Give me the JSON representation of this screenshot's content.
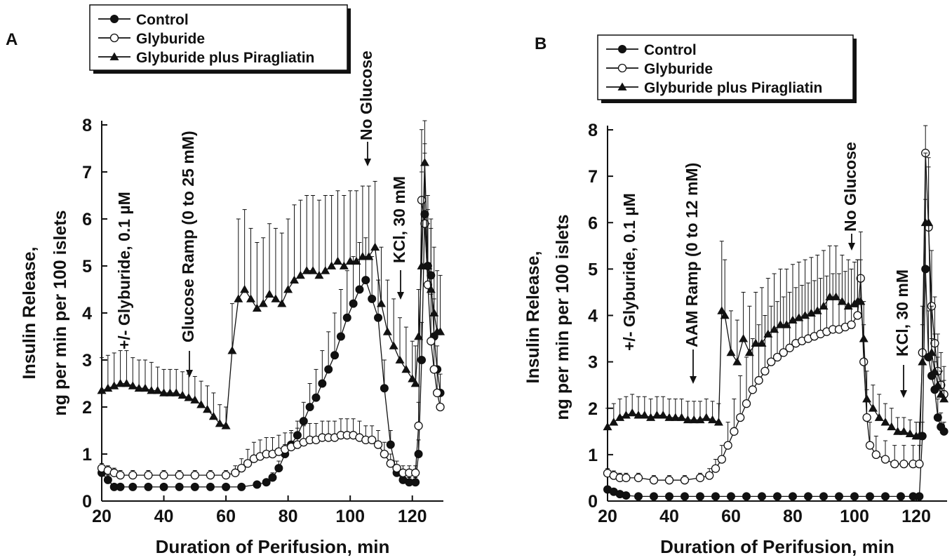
{
  "chart_data": [
    {
      "type": "line",
      "panel_label": "A",
      "xlabel": "Duration of Perifusion, min",
      "ylabel_line1": "Insulin Release,",
      "ylabel_line2": "ng per min per 100 islets",
      "xlim": [
        20,
        130
      ],
      "ylim": [
        0,
        8
      ],
      "xticks": [
        "20",
        "40",
        "60",
        "80",
        "100",
        "120"
      ],
      "yticks": [
        "0",
        "1",
        "2",
        "3",
        "4",
        "5",
        "6",
        "7",
        "8"
      ],
      "legend": [
        "Control",
        "Glyburide",
        "Glyburide plus Piragliatin"
      ],
      "legend_position": "top",
      "annotations": {
        "glyburide": "+/- Glyburide, 0.1 µM",
        "ramp": "Glucose Ramp (0 to 25 mM)",
        "no_glucose": "No Glucose",
        "kcl": "KCl, 30 mM"
      },
      "series": [
        {
          "name": "Control",
          "marker": "filled-circle",
          "x": [
            20,
            22,
            24,
            26,
            30,
            35,
            40,
            45,
            50,
            55,
            60,
            65,
            70,
            73,
            75,
            77,
            79,
            81,
            83,
            85,
            87,
            89,
            91,
            93,
            95,
            97,
            99,
            101,
            103,
            105,
            107,
            109,
            111,
            113,
            115,
            117,
            119,
            121,
            122,
            123,
            124,
            125,
            126,
            127,
            128,
            129
          ],
          "y": [
            0.6,
            0.45,
            0.3,
            0.3,
            0.3,
            0.3,
            0.3,
            0.3,
            0.3,
            0.3,
            0.3,
            0.3,
            0.35,
            0.4,
            0.5,
            0.7,
            1.0,
            1.2,
            1.4,
            1.7,
            2.0,
            2.2,
            2.5,
            2.8,
            3.1,
            3.5,
            3.9,
            4.2,
            4.5,
            4.7,
            4.3,
            3.9,
            2.4,
            1.2,
            0.6,
            0.45,
            0.4,
            0.4,
            1.0,
            3.0,
            6.1,
            5.0,
            4.8,
            3.5,
            2.8,
            2.3
          ],
          "err": [
            0.1,
            0.1,
            0.05,
            0.05,
            0.05,
            0.05,
            0.05,
            0.05,
            0.05,
            0.05,
            0.05,
            0.05,
            0.05,
            0.05,
            0.1,
            0.15,
            0.2,
            0.25,
            0.3,
            0.4,
            0.5,
            0.6,
            0.7,
            0.8,
            0.9,
            1.0,
            1.0,
            1.0,
            1.0,
            0.9,
            0.9,
            0.8,
            0.6,
            0.3,
            0.1,
            0.1,
            0.1,
            0.1,
            0.3,
            0.8,
            1.5,
            1.2,
            1.0,
            0.8,
            0.5,
            0.4
          ]
        },
        {
          "name": "Glyburide",
          "marker": "open-circle",
          "x": [
            20,
            22,
            24,
            26,
            30,
            35,
            40,
            45,
            50,
            55,
            60,
            63,
            65,
            67,
            69,
            71,
            73,
            75,
            77,
            79,
            81,
            83,
            85,
            87,
            89,
            91,
            93,
            95,
            97,
            99,
            101,
            103,
            105,
            107,
            109,
            111,
            113,
            115,
            117,
            119,
            121,
            122,
            123,
            124,
            125,
            126,
            127,
            128,
            129
          ],
          "y": [
            0.7,
            0.65,
            0.6,
            0.55,
            0.55,
            0.55,
            0.55,
            0.55,
            0.55,
            0.55,
            0.55,
            0.6,
            0.7,
            0.8,
            0.9,
            0.95,
            1.0,
            1.0,
            1.05,
            1.1,
            1.15,
            1.2,
            1.25,
            1.3,
            1.3,
            1.35,
            1.35,
            1.35,
            1.4,
            1.4,
            1.4,
            1.35,
            1.3,
            1.3,
            1.2,
            1.0,
            0.8,
            0.7,
            0.6,
            0.6,
            0.6,
            1.6,
            6.4,
            5.9,
            4.6,
            3.4,
            2.8,
            2.3,
            2.0
          ],
          "err": [
            0.1,
            0.1,
            0.1,
            0.1,
            0.1,
            0.1,
            0.1,
            0.1,
            0.1,
            0.1,
            0.1,
            0.15,
            0.2,
            0.3,
            0.35,
            0.35,
            0.35,
            0.35,
            0.35,
            0.35,
            0.35,
            0.35,
            0.35,
            0.35,
            0.35,
            0.35,
            0.35,
            0.35,
            0.35,
            0.35,
            0.35,
            0.35,
            0.3,
            0.3,
            0.3,
            0.25,
            0.2,
            0.15,
            0.15,
            0.15,
            0.15,
            0.5,
            1.5,
            1.5,
            1.3,
            1.0,
            0.7,
            0.5,
            0.3
          ]
        },
        {
          "name": "Glyburide plus Piragliatin",
          "marker": "filled-triangle",
          "x": [
            20,
            22,
            24,
            26,
            28,
            30,
            32,
            34,
            36,
            38,
            40,
            42,
            44,
            46,
            48,
            50,
            52,
            54,
            56,
            58,
            60,
            62,
            64,
            66,
            68,
            70,
            72,
            74,
            76,
            78,
            80,
            82,
            84,
            86,
            88,
            90,
            92,
            94,
            96,
            98,
            100,
            102,
            104,
            106,
            108,
            110,
            112,
            114,
            116,
            118,
            120,
            121,
            122,
            123,
            124,
            125,
            126,
            127,
            128,
            129
          ],
          "y": [
            2.35,
            2.4,
            2.45,
            2.5,
            2.5,
            2.45,
            2.4,
            2.4,
            2.35,
            2.35,
            2.3,
            2.3,
            2.3,
            2.25,
            2.2,
            2.15,
            2.05,
            1.95,
            1.8,
            1.65,
            1.6,
            3.2,
            4.3,
            4.5,
            4.3,
            4.1,
            4.2,
            4.4,
            4.3,
            4.2,
            4.5,
            4.7,
            4.8,
            4.9,
            4.9,
            4.8,
            4.9,
            5.0,
            5.1,
            5.0,
            5.1,
            5.1,
            5.2,
            5.2,
            5.4,
            4.2,
            3.6,
            3.3,
            3.0,
            2.8,
            2.6,
            2.5,
            3.5,
            5.0,
            7.2,
            5.0,
            4.5,
            4.0,
            3.6,
            3.6
          ],
          "err": [
            0.7,
            0.7,
            0.7,
            0.7,
            0.7,
            0.6,
            0.6,
            0.6,
            0.6,
            0.5,
            0.5,
            0.5,
            0.5,
            0.5,
            0.5,
            0.5,
            0.5,
            0.5,
            0.5,
            0.4,
            0.4,
            1.0,
            1.7,
            1.7,
            1.5,
            1.4,
            1.4,
            1.5,
            1.5,
            1.5,
            1.5,
            1.6,
            1.6,
            1.6,
            1.6,
            1.6,
            1.6,
            1.5,
            1.5,
            1.5,
            1.5,
            1.5,
            1.5,
            1.5,
            1.4,
            1.2,
            1.1,
            1.0,
            0.9,
            0.9,
            0.8,
            0.8,
            1.0,
            2.0,
            1.2,
            1.5,
            1.5,
            1.4,
            1.3,
            1.2
          ]
        }
      ]
    },
    {
      "type": "line",
      "panel_label": "B",
      "xlabel": "Duration of Perifusion, min",
      "ylabel_line1": "Insulin Release,",
      "ylabel_line2": "ng per min per 100 islets",
      "xlim": [
        20,
        130
      ],
      "ylim": [
        0,
        8
      ],
      "xticks": [
        "20",
        "40",
        "60",
        "80",
        "100",
        "120"
      ],
      "yticks": [
        "0",
        "1",
        "2",
        "3",
        "4",
        "5",
        "6",
        "7",
        "8"
      ],
      "legend": [
        "Control",
        "Glyburide",
        "Glyburide plus Piragliatin"
      ],
      "legend_position": "top",
      "annotations": {
        "glyburide": "+/- Glyburide, 0.1 µM",
        "ramp": "AAM Ramp (0 to 12 mM)",
        "no_glucose": "No Glucose",
        "kcl": "KCl, 30 mM"
      },
      "series": [
        {
          "name": "Control",
          "marker": "filled-circle",
          "x": [
            20,
            22,
            24,
            26,
            30,
            35,
            40,
            45,
            50,
            55,
            60,
            65,
            70,
            75,
            80,
            85,
            90,
            95,
            100,
            105,
            110,
            115,
            119,
            121,
            122,
            123,
            124,
            125,
            126,
            127,
            128,
            129
          ],
          "y": [
            0.25,
            0.2,
            0.15,
            0.12,
            0.1,
            0.1,
            0.1,
            0.1,
            0.1,
            0.1,
            0.1,
            0.1,
            0.1,
            0.1,
            0.1,
            0.1,
            0.1,
            0.1,
            0.1,
            0.1,
            0.1,
            0.1,
            0.1,
            0.1,
            1.4,
            5.0,
            3.1,
            2.7,
            2.4,
            1.8,
            1.6,
            1.5
          ],
          "err": [
            0.05,
            0.05,
            0.05,
            0.03,
            0.03,
            0.03,
            0.03,
            0.03,
            0.03,
            0.03,
            0.03,
            0.03,
            0.03,
            0.03,
            0.03,
            0.03,
            0.03,
            0.03,
            0.03,
            0.03,
            0.03,
            0.03,
            0.03,
            0.03,
            0.3,
            1.5,
            1.0,
            0.8,
            0.6,
            0.4,
            0.3,
            0.2
          ]
        },
        {
          "name": "Glyburide",
          "marker": "open-circle",
          "x": [
            20,
            22,
            24,
            26,
            30,
            35,
            40,
            45,
            50,
            53,
            55,
            57,
            59,
            61,
            63,
            65,
            67,
            69,
            71,
            73,
            75,
            77,
            79,
            81,
            83,
            85,
            87,
            89,
            91,
            93,
            95,
            97,
            99,
            101,
            102,
            103,
            104,
            105,
            107,
            110,
            113,
            116,
            119,
            121,
            122,
            123,
            124,
            125,
            126,
            127,
            128,
            129
          ],
          "y": [
            0.6,
            0.55,
            0.5,
            0.5,
            0.5,
            0.45,
            0.45,
            0.45,
            0.5,
            0.55,
            0.7,
            0.9,
            1.2,
            1.5,
            1.8,
            2.1,
            2.4,
            2.6,
            2.8,
            3.0,
            3.1,
            3.2,
            3.3,
            3.4,
            3.45,
            3.5,
            3.55,
            3.6,
            3.65,
            3.7,
            3.7,
            3.75,
            3.8,
            4.0,
            4.8,
            3.0,
            1.8,
            1.2,
            1.0,
            0.9,
            0.8,
            0.8,
            0.8,
            0.8,
            3.2,
            7.5,
            5.9,
            4.2,
            3.4,
            2.8,
            2.5,
            2.3
          ],
          "err": [
            0.1,
            0.1,
            0.1,
            0.1,
            0.1,
            0.1,
            0.1,
            0.1,
            0.1,
            0.15,
            0.2,
            0.3,
            0.5,
            0.7,
            0.9,
            1.0,
            1.1,
            1.2,
            1.2,
            1.2,
            1.2,
            1.2,
            1.2,
            1.2,
            1.2,
            1.2,
            1.2,
            1.2,
            1.2,
            1.2,
            1.2,
            1.2,
            1.2,
            1.2,
            1.0,
            0.8,
            0.6,
            0.5,
            0.4,
            0.4,
            0.4,
            0.4,
            0.4,
            0.4,
            1.0,
            1.5,
            1.5,
            1.2,
            1.0,
            0.8,
            0.7,
            0.6
          ]
        },
        {
          "name": "Glyburide plus Piragliatin",
          "marker": "filled-triangle",
          "x": [
            20,
            22,
            24,
            26,
            28,
            30,
            32,
            34,
            36,
            38,
            40,
            42,
            44,
            46,
            48,
            50,
            52,
            54,
            56,
            57,
            58,
            60,
            62,
            64,
            66,
            68,
            70,
            72,
            74,
            76,
            78,
            80,
            82,
            84,
            86,
            88,
            90,
            92,
            94,
            96,
            98,
            100,
            101,
            102,
            103,
            104,
            106,
            108,
            110,
            112,
            114,
            116,
            118,
            120,
            121,
            122,
            123,
            124,
            125,
            126,
            127,
            128,
            129
          ],
          "y": [
            1.6,
            1.7,
            1.8,
            1.85,
            1.9,
            1.85,
            1.85,
            1.8,
            1.85,
            1.85,
            1.8,
            1.8,
            1.8,
            1.75,
            1.75,
            1.75,
            1.8,
            1.75,
            1.7,
            4.1,
            4.0,
            3.2,
            3.0,
            3.5,
            3.2,
            3.4,
            3.4,
            3.6,
            3.7,
            3.8,
            3.8,
            3.9,
            3.95,
            4.0,
            4.05,
            4.1,
            4.2,
            4.4,
            4.4,
            4.3,
            4.2,
            4.25,
            4.3,
            4.3,
            3.5,
            2.2,
            2.0,
            1.8,
            1.7,
            1.6,
            1.5,
            1.5,
            1.45,
            1.4,
            1.4,
            3.0,
            6.0,
            6.0,
            3.2,
            2.8,
            2.5,
            2.3,
            2.2
          ],
          "err": [
            0.4,
            0.4,
            0.4,
            0.4,
            0.4,
            0.4,
            0.4,
            0.4,
            0.4,
            0.4,
            0.4,
            0.4,
            0.4,
            0.4,
            0.4,
            0.4,
            0.4,
            0.4,
            0.4,
            1.5,
            1.2,
            0.9,
            0.9,
            1.0,
            1.0,
            1.1,
            1.2,
            1.2,
            1.2,
            1.2,
            1.2,
            1.2,
            1.2,
            1.2,
            1.2,
            1.2,
            1.2,
            1.1,
            1.1,
            1.0,
            1.0,
            0.9,
            0.9,
            0.9,
            0.8,
            0.6,
            0.5,
            0.5,
            0.4,
            0.4,
            0.3,
            0.3,
            0.3,
            0.3,
            0.3,
            0.8,
            1.5,
            1.2,
            1.0,
            0.8,
            0.6,
            0.5,
            0.4
          ]
        }
      ]
    }
  ]
}
